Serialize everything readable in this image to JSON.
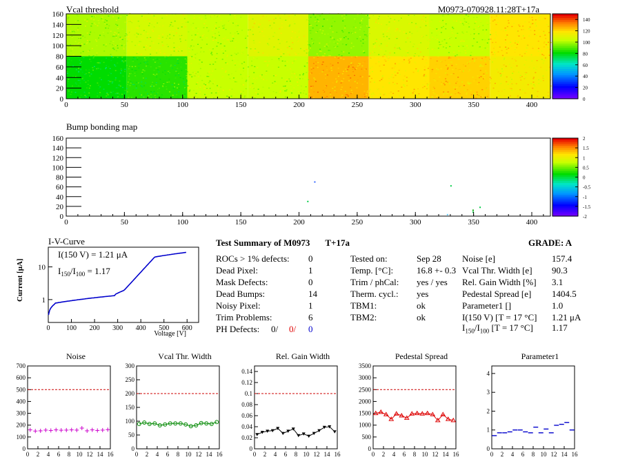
{
  "vcal_map": {
    "title": "Vcal threshold",
    "module_label": "M0973-070928.11:28T+17a",
    "xlim": [
      0,
      416
    ],
    "ylim": [
      0,
      160
    ],
    "x_ticks": [
      "0",
      "50",
      "100",
      "150",
      "200",
      "250",
      "300",
      "350",
      "400"
    ],
    "y_ticks": [
      "0",
      "20",
      "40",
      "60",
      "80",
      "100",
      "120",
      "140",
      "160"
    ],
    "z_ticks": [
      "0",
      "20",
      "40",
      "60",
      "80",
      "100",
      "120",
      "140"
    ],
    "zlim": [
      0,
      150
    ]
  },
  "bump_map": {
    "title": "Bump bonding map",
    "xlim": [
      0,
      416
    ],
    "ylim": [
      0,
      160
    ],
    "x_ticks": [
      "0",
      "50",
      "100",
      "150",
      "200",
      "250",
      "300",
      "350",
      "400"
    ],
    "y_ticks": [
      "0",
      "20",
      "40",
      "60",
      "80",
      "100",
      "120",
      "140",
      "160"
    ],
    "z_ticks": [
      "-2",
      "-1.5",
      "-1",
      "-0.5",
      "0",
      "0.5",
      "1",
      "1.5",
      "2"
    ],
    "zlim": [
      -2,
      2
    ]
  },
  "iv_curve": {
    "title": "I-V-Curve",
    "ylabel": "Current [μA]",
    "xlabel": "Voltage [V]",
    "x_ticks": [
      "0",
      "100",
      "200",
      "300",
      "400",
      "500",
      "600"
    ],
    "y_ticks": [
      "1",
      "10"
    ],
    "xlim": [
      0,
      650
    ],
    "ylim": [
      0.2,
      40
    ],
    "log_y": true,
    "annot_i": "I(150 V) = 1.21 μA",
    "annot_ratio_pre": "I",
    "annot_ratio_sub1": "150",
    "annot_ratio_mid": "/I",
    "annot_ratio_sub2": "100",
    "annot_ratio_post": " =  1.17"
  },
  "summary": {
    "title": "Test Summary of M0973",
    "temp_label": "T+17a",
    "grade": "GRADE:  A",
    "col1": [
      {
        "label": "ROCs > 1% defects:",
        "value": "0"
      },
      {
        "label": "Dead Pixel:",
        "value": "1"
      },
      {
        "label": "Mask Defects:",
        "value": "0"
      },
      {
        "label": "Dead Bumps:",
        "value": "14"
      },
      {
        "label": "Noisy Pixel:",
        "value": "1"
      },
      {
        "label": "Trim Problems:",
        "value": "6"
      }
    ],
    "ph_label": "PH Defects:",
    "ph_values": [
      {
        "text": "0/",
        "color": "#000000"
      },
      {
        "text": "0/",
        "color": "#e00000"
      },
      {
        "text": "0",
        "color": "#0000cc"
      }
    ],
    "col2": [
      {
        "label": "Tested on:",
        "value": "Sep 28"
      },
      {
        "label": "Temp. [°C]:",
        "value": "16.8 +- 0.3"
      },
      {
        "label": "Trim / phCal:",
        "value": "yes / yes"
      },
      {
        "label": "Therm. cycl.:",
        "value": "yes"
      },
      {
        "label": "TBM1:",
        "value": "ok"
      },
      {
        "label": "TBM2:",
        "value": "ok"
      }
    ],
    "col3": [
      {
        "label": "Noise [e]",
        "value": "157.4"
      },
      {
        "label": "Vcal Thr. Width [e]",
        "value": "90.3"
      },
      {
        "label": "Rel. Gain Width [%]",
        "value": "3.1"
      },
      {
        "label": "Pedestal Spread [e]",
        "value": "1404.5"
      },
      {
        "label": "Parameter1 []",
        "value": "1.0"
      },
      {
        "label": "I(150 V) [T = 17 °C]",
        "value": "1.21 μA"
      }
    ],
    "ratio_label_pre": "I",
    "ratio_sub1": "150",
    "ratio_mid": "/I",
    "ratio_sub2": "100",
    "ratio_label_post": " [T = 17 °C]",
    "ratio_value": "1.17"
  },
  "chart_data": [
    {
      "type": "scatter",
      "title": "Noise",
      "color": "#cc00cc",
      "marker": "plus",
      "x": [
        0,
        1,
        2,
        3,
        4,
        5,
        6,
        7,
        8,
        9,
        10,
        11,
        12,
        13,
        14,
        15
      ],
      "values": [
        160,
        150,
        152,
        158,
        155,
        160,
        157,
        158,
        160,
        158,
        175,
        152,
        160,
        155,
        158,
        162
      ],
      "threshold": 500,
      "ylim": [
        0,
        700
      ],
      "y_ticks": [
        "0",
        "100",
        "200",
        "300",
        "400",
        "500",
        "600",
        "700"
      ],
      "x_ticks": [
        "0",
        "2",
        "4",
        "6",
        "8",
        "10",
        "12",
        "14",
        "16"
      ]
    },
    {
      "type": "line",
      "title": "Vcal Thr. Width",
      "color": "#008800",
      "marker": "circle",
      "x": [
        0,
        1,
        2,
        3,
        4,
        5,
        6,
        7,
        8,
        9,
        10,
        11,
        12,
        13,
        14,
        15
      ],
      "values": [
        90,
        95,
        90,
        92,
        85,
        88,
        92,
        92,
        92,
        88,
        82,
        85,
        93,
        92,
        90,
        97
      ],
      "threshold": 200,
      "ylim": [
        0,
        300
      ],
      "y_ticks": [
        "0",
        "50",
        "100",
        "150",
        "200",
        "250",
        "300"
      ],
      "x_ticks": [
        "0",
        "2",
        "4",
        "6",
        "8",
        "10",
        "12",
        "14",
        "16"
      ]
    },
    {
      "type": "line",
      "title": "Rel. Gain Width",
      "color": "#000000",
      "marker": "triangle-down",
      "x": [
        0,
        1,
        2,
        3,
        4,
        5,
        6,
        7,
        8,
        9,
        10,
        11,
        12,
        13,
        14,
        15
      ],
      "values": [
        0.026,
        0.03,
        0.032,
        0.033,
        0.037,
        0.028,
        0.032,
        0.036,
        0.024,
        0.027,
        0.023,
        0.028,
        0.033,
        0.039,
        0.04,
        0.031
      ],
      "threshold": 0.1,
      "ylim": [
        0,
        0.15
      ],
      "y_ticks": [
        "0",
        "0.02",
        "0.04",
        "0.06",
        "0.08",
        "0.1",
        "0.12",
        "0.14"
      ],
      "x_ticks": [
        "0",
        "2",
        "4",
        "6",
        "8",
        "10",
        "12",
        "14",
        "16"
      ]
    },
    {
      "type": "line",
      "title": "Pedestal Spread",
      "color": "#dd0000",
      "marker": "triangle-up",
      "x": [
        0,
        1,
        2,
        3,
        4,
        5,
        6,
        7,
        8,
        9,
        10,
        11,
        12,
        13,
        14,
        15
      ],
      "values": [
        1500,
        1550,
        1450,
        1250,
        1480,
        1400,
        1300,
        1480,
        1500,
        1480,
        1500,
        1450,
        1200,
        1450,
        1250,
        1200
      ],
      "threshold": 2500,
      "ylim": [
        0,
        3500
      ],
      "y_ticks": [
        "0",
        "500",
        "1000",
        "1500",
        "2000",
        "2500",
        "3000",
        "3500"
      ],
      "x_ticks": [
        "0",
        "2",
        "4",
        "6",
        "8",
        "10",
        "12",
        "14",
        "16"
      ]
    },
    {
      "type": "scatter",
      "title": "Parameter1",
      "color": "#0000cc",
      "marker": "hbar",
      "x": [
        0,
        1,
        2,
        3,
        4,
        5,
        6,
        7,
        8,
        9,
        10,
        11,
        12,
        13,
        14,
        15
      ],
      "values": [
        0.7,
        0.85,
        0.85,
        0.9,
        1.0,
        1.0,
        0.9,
        0.85,
        1.15,
        0.85,
        1.05,
        0.85,
        1.25,
        1.3,
        1.4,
        1.0
      ],
      "threshold": null,
      "ylim": [
        0,
        4.4
      ],
      "y_ticks": [
        "0",
        "1",
        "2",
        "3",
        "4"
      ],
      "x_ticks": [
        "0",
        "2",
        "4",
        "6",
        "8",
        "10",
        "12",
        "14",
        "16"
      ]
    }
  ]
}
